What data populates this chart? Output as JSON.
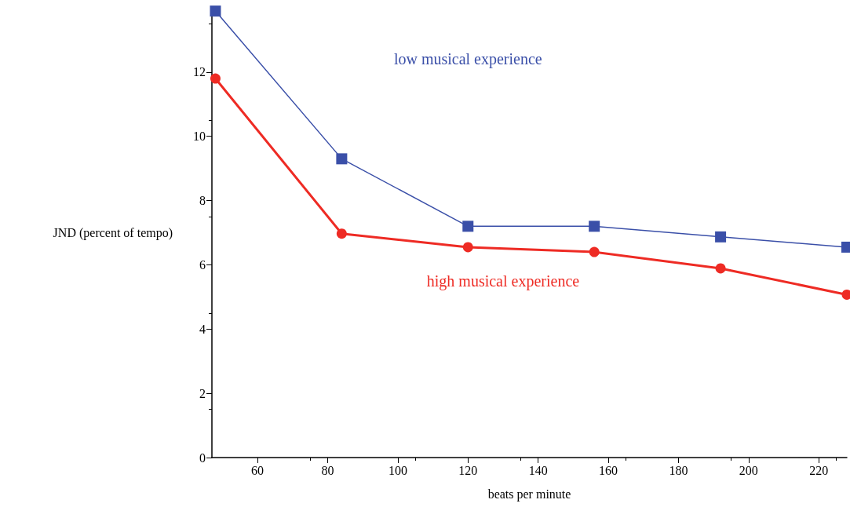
{
  "chart_data": {
    "type": "line",
    "xlabel": "beats per minute",
    "ylabel": "JND (percent of tempo)",
    "xlim": [
      47,
      228
    ],
    "xticks": [
      60,
      80,
      100,
      120,
      140,
      160,
      180,
      200,
      220
    ],
    "ylim": [
      0,
      14
    ],
    "yticks": [
      0,
      2,
      4,
      6,
      8,
      10,
      12
    ],
    "grid": false,
    "legend": false,
    "series": [
      {
        "name": "low musical experience",
        "color": "#3a4fa8",
        "marker": "square",
        "x": [
          48,
          84,
          120,
          156,
          192,
          228
        ],
        "values": [
          13.9,
          9.3,
          7.2,
          7.2,
          6.87,
          6.55
        ]
      },
      {
        "name": "high musical experience",
        "color": "#ee2b24",
        "marker": "circle",
        "x": [
          48,
          84,
          120,
          156,
          192,
          228
        ],
        "values": [
          11.8,
          6.97,
          6.55,
          6.4,
          5.89,
          5.07
        ]
      }
    ]
  }
}
